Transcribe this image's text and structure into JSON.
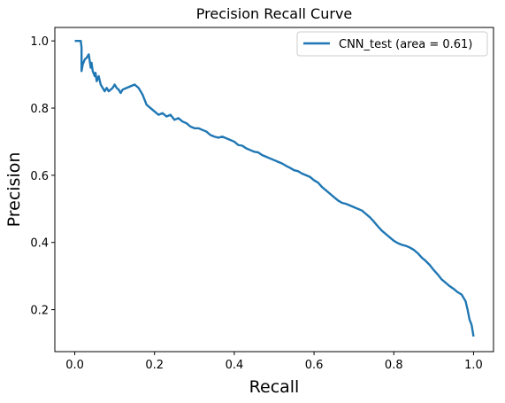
{
  "chart_data": {
    "type": "line",
    "title": "Precision Recall Curve",
    "xlabel": "Recall",
    "ylabel": "Precision",
    "xlim": [
      -0.05,
      1.05
    ],
    "ylim": [
      0.075,
      1.04
    ],
    "xticks": [
      0.0,
      0.2,
      0.4,
      0.6,
      0.8,
      1.0
    ],
    "xtick_labels": [
      "0.0",
      "0.2",
      "0.4",
      "0.6",
      "0.8",
      "1.0"
    ],
    "yticks": [
      0.2,
      0.4,
      0.6,
      0.8,
      1.0
    ],
    "ytick_labels": [
      "0.2",
      "0.4",
      "0.6",
      "0.8",
      "1.0"
    ],
    "grid": false,
    "legend": {
      "placement": "top-right",
      "entries": [
        "CNN_test (area = 0.61)"
      ]
    },
    "line_color": "#1f77b4",
    "series": [
      {
        "name": "CNN_test (area = 0.61)",
        "x": [
          0.0,
          0.015,
          0.017,
          0.017,
          0.02,
          0.025,
          0.03,
          0.035,
          0.04,
          0.042,
          0.045,
          0.05,
          0.052,
          0.055,
          0.06,
          0.065,
          0.07,
          0.075,
          0.08,
          0.085,
          0.09,
          0.095,
          0.1,
          0.105,
          0.11,
          0.115,
          0.12,
          0.13,
          0.14,
          0.15,
          0.155,
          0.16,
          0.165,
          0.17,
          0.175,
          0.18,
          0.19,
          0.2,
          0.21,
          0.22,
          0.23,
          0.24,
          0.25,
          0.26,
          0.27,
          0.28,
          0.29,
          0.3,
          0.31,
          0.32,
          0.33,
          0.34,
          0.35,
          0.36,
          0.37,
          0.38,
          0.39,
          0.4,
          0.41,
          0.42,
          0.43,
          0.44,
          0.45,
          0.46,
          0.47,
          0.48,
          0.49,
          0.5,
          0.51,
          0.52,
          0.53,
          0.54,
          0.55,
          0.56,
          0.57,
          0.58,
          0.59,
          0.6,
          0.61,
          0.62,
          0.63,
          0.64,
          0.65,
          0.66,
          0.67,
          0.68,
          0.69,
          0.7,
          0.71,
          0.72,
          0.73,
          0.74,
          0.75,
          0.76,
          0.77,
          0.78,
          0.79,
          0.8,
          0.81,
          0.82,
          0.83,
          0.84,
          0.85,
          0.86,
          0.87,
          0.88,
          0.89,
          0.9,
          0.91,
          0.92,
          0.93,
          0.94,
          0.95,
          0.96,
          0.97,
          0.975,
          0.98,
          0.985,
          0.99,
          0.995,
          1.0
        ],
        "y": [
          1.0,
          1.0,
          0.98,
          0.91,
          0.93,
          0.945,
          0.95,
          0.96,
          0.92,
          0.935,
          0.91,
          0.895,
          0.905,
          0.88,
          0.895,
          0.87,
          0.86,
          0.85,
          0.86,
          0.85,
          0.855,
          0.86,
          0.87,
          0.86,
          0.855,
          0.845,
          0.855,
          0.86,
          0.865,
          0.87,
          0.865,
          0.86,
          0.85,
          0.84,
          0.825,
          0.81,
          0.8,
          0.79,
          0.78,
          0.785,
          0.775,
          0.78,
          0.765,
          0.77,
          0.76,
          0.755,
          0.745,
          0.74,
          0.74,
          0.735,
          0.73,
          0.72,
          0.715,
          0.712,
          0.715,
          0.71,
          0.705,
          0.7,
          0.69,
          0.688,
          0.68,
          0.675,
          0.67,
          0.668,
          0.66,
          0.655,
          0.65,
          0.645,
          0.64,
          0.635,
          0.628,
          0.622,
          0.615,
          0.612,
          0.605,
          0.6,
          0.595,
          0.585,
          0.578,
          0.565,
          0.555,
          0.545,
          0.535,
          0.525,
          0.518,
          0.515,
          0.51,
          0.505,
          0.5,
          0.495,
          0.485,
          0.475,
          0.462,
          0.448,
          0.435,
          0.425,
          0.415,
          0.405,
          0.398,
          0.393,
          0.39,
          0.385,
          0.378,
          0.368,
          0.355,
          0.345,
          0.333,
          0.318,
          0.305,
          0.29,
          0.28,
          0.27,
          0.262,
          0.252,
          0.245,
          0.235,
          0.225,
          0.2,
          0.17,
          0.155,
          0.12
        ]
      }
    ]
  }
}
